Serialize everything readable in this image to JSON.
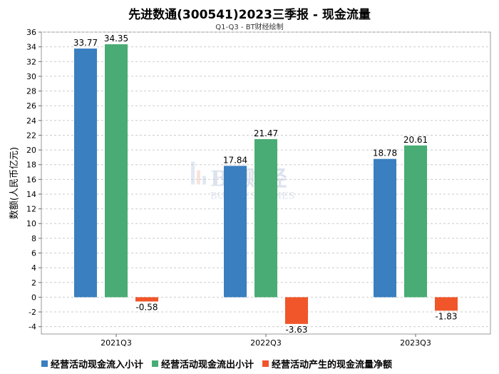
{
  "chart_data": {
    "type": "bar",
    "title": "先进数通(300541)2023三季报 - 现金流量",
    "subtitle": "Q1-Q3 - BT财经绘制",
    "ylabel": "数额(人民币亿元)",
    "xlabel": "",
    "categories": [
      "2021Q3",
      "2022Q3",
      "2023Q3"
    ],
    "series": [
      {
        "name": "经营活动现金流入小计",
        "color": "#3a7fc0",
        "values": [
          33.77,
          17.84,
          18.78
        ]
      },
      {
        "name": "经营活动现金流出小计",
        "color": "#49ac74",
        "values": [
          34.35,
          21.47,
          20.61
        ]
      },
      {
        "name": "经营活动产生的现金流量净额",
        "color": "#f0562a",
        "values": [
          -0.58,
          -3.63,
          -1.83
        ]
      }
    ],
    "ylim": [
      -5,
      36
    ],
    "yticks": [
      -4,
      -2,
      0,
      2,
      4,
      6,
      8,
      10,
      12,
      14,
      16,
      18,
      20,
      22,
      24,
      26,
      28,
      30,
      32,
      34,
      36
    ],
    "grid": true,
    "legend_position": "bottom"
  },
  "watermark": {
    "text_main": "BT财经",
    "text_sub": "BUSINESSTIMES"
  }
}
